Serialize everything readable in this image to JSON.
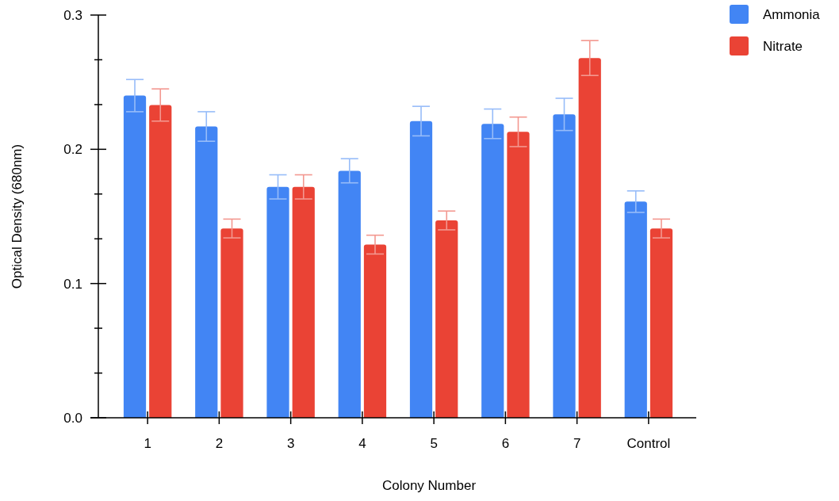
{
  "chart_data": {
    "type": "bar",
    "xlabel": "Colony Number",
    "ylabel": "Optical Density (680nm)",
    "categories": [
      "1",
      "2",
      "3",
      "4",
      "5",
      "6",
      "7",
      "Control"
    ],
    "series": [
      {
        "name": "Ammonia",
        "color": "#4285f4",
        "values": [
          0.24,
          0.217,
          0.172,
          0.184,
          0.221,
          0.219,
          0.226,
          0.161
        ],
        "errors": [
          0.012,
          0.011,
          0.009,
          0.009,
          0.011,
          0.011,
          0.012,
          0.008
        ]
      },
      {
        "name": "Nitrate",
        "color": "#ea4335",
        "values": [
          0.233,
          0.141,
          0.172,
          0.129,
          0.147,
          0.213,
          0.268,
          0.141
        ],
        "errors": [
          0.012,
          0.007,
          0.009,
          0.007,
          0.007,
          0.011,
          0.013,
          0.007
        ]
      }
    ],
    "ylim": [
      0,
      0.3
    ],
    "yticks": [
      {
        "value": 0,
        "label": "0.0"
      },
      {
        "value": 0.0333,
        "label": null
      },
      {
        "value": 0.0667,
        "label": null
      },
      {
        "value": 0.1,
        "label": "0.1"
      },
      {
        "value": 0.1333,
        "label": null
      },
      {
        "value": 0.1667,
        "label": null
      },
      {
        "value": 0.2,
        "label": "0.2"
      },
      {
        "value": 0.2333,
        "label": null
      },
      {
        "value": 0.2667,
        "label": null
      },
      {
        "value": 0.3,
        "label": "0.3"
      }
    ],
    "legend": "top right",
    "grid": false
  }
}
